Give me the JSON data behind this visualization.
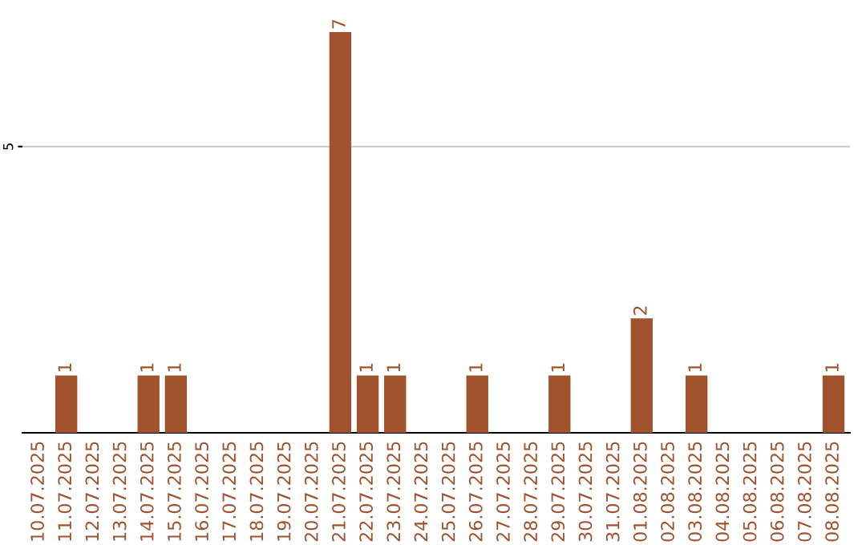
{
  "chart_data": {
    "type": "bar",
    "categories": [
      "10.07.2025",
      "11.07.2025",
      "12.07.2025",
      "13.07.2025",
      "14.07.2025",
      "15.07.2025",
      "16.07.2025",
      "17.07.2025",
      "18.07.2025",
      "19.07.2025",
      "20.07.2025",
      "21.07.2025",
      "22.07.2025",
      "23.07.2025",
      "24.07.2025",
      "25.07.2025",
      "26.07.2025",
      "27.07.2025",
      "28.07.2025",
      "29.07.2025",
      "30.07.2025",
      "31.07.2025",
      "01.08.2025",
      "02.08.2025",
      "03.08.2025",
      "04.08.2025",
      "05.08.2025",
      "06.08.2025",
      "07.08.2025",
      "08.08.2025"
    ],
    "series": [
      {
        "color": "#a0522d",
        "values": [
          0,
          1,
          0,
          0,
          1,
          1,
          0,
          0,
          0,
          0,
          0,
          7,
          1,
          1,
          0,
          0,
          1,
          0,
          0,
          1,
          0,
          0,
          2,
          0,
          1,
          0,
          0,
          0,
          0,
          1
        ],
        "value_labels": [
          null,
          "1",
          null,
          null,
          "1",
          "1",
          null,
          null,
          null,
          null,
          null,
          "7",
          "1",
          "1",
          null,
          null,
          "1",
          null,
          null,
          "1",
          null,
          null,
          "2",
          null,
          "1",
          null,
          null,
          null,
          null,
          "1"
        ]
      }
    ],
    "ylim": [
      0,
      7
    ],
    "yticks": [
      5
    ],
    "grid": "y"
  }
}
